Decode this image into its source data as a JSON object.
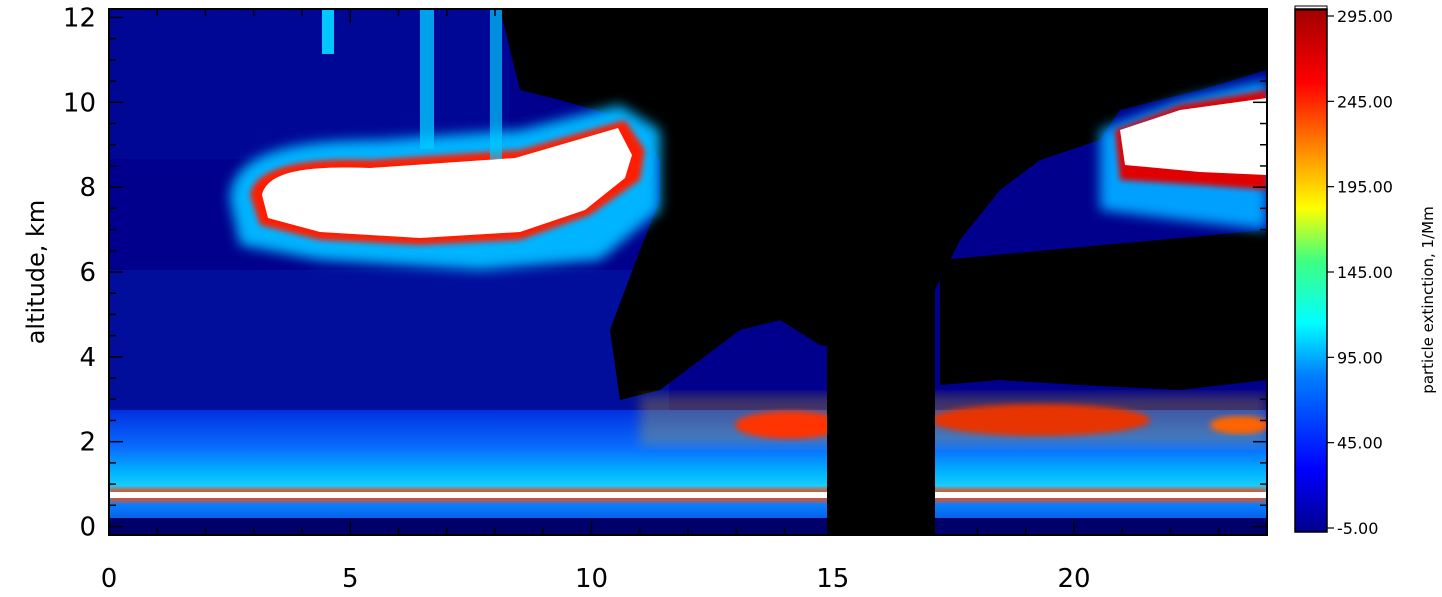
{
  "chart_data": {
    "type": "heatmap",
    "title": "",
    "xlabel": "",
    "ylabel": "altitude, km",
    "xlim": [
      0,
      24
    ],
    "ylim": [
      -0.2,
      12.2
    ],
    "x_ticks": [
      "0",
      "5",
      "10",
      "15",
      "20"
    ],
    "x_tick_values": [
      0,
      5,
      10,
      15,
      20
    ],
    "y_ticks": [
      "0",
      "2",
      "4",
      "6",
      "8",
      "10",
      "12"
    ],
    "y_tick_values": [
      0,
      2,
      4,
      6,
      8,
      10,
      12
    ],
    "colorbar": {
      "label": "particle extinction, 1/Mm",
      "range": [
        -5,
        295
      ],
      "ticks": [
        "-5.00",
        "45.00",
        "95.00",
        "145.00",
        "195.00",
        "245.00",
        "295.00"
      ],
      "tick_values": [
        -5,
        45,
        95,
        145,
        195,
        245,
        295
      ],
      "saturated_color": "#ffffff",
      "missing_color": "#000000"
    },
    "features": [
      {
        "name": "upper cloud layer",
        "x_range": [
          3,
          11
        ],
        "altitude_range": [
          6.5,
          9.0
        ],
        "extinction": "above 295"
      },
      {
        "name": "upper cloud layer",
        "x_range": [
          21,
          24
        ],
        "altitude_range": [
          7.8,
          10.0
        ],
        "extinction": "above 295"
      },
      {
        "name": "elevated aerosol layer",
        "x_range": [
          13.5,
          24
        ],
        "altitude_range": [
          2.2,
          2.9
        ],
        "extinction": "approx. 250-295"
      },
      {
        "name": "boundary layer",
        "x_range": [
          0,
          24
        ],
        "altitude_range": [
          0.0,
          2.2
        ],
        "extinction": "approx. 45-145"
      },
      {
        "name": "near-surface layer",
        "x_range": [
          0,
          24
        ],
        "altitude_range": [
          0.5,
          0.8
        ],
        "extinction": "above 295"
      },
      {
        "name": "missing data",
        "x_range": [
          14.9,
          17.1
        ],
        "altitude_range": [
          0,
          12.2
        ],
        "extinction": "no data"
      }
    ]
  },
  "colors": {
    "low": "#00008c",
    "mid": "#00c8ff",
    "yellow": "#ffff00",
    "high": "#d20000",
    "top": "#a00000",
    "missing": "#000000",
    "saturated": "#ffffff"
  }
}
